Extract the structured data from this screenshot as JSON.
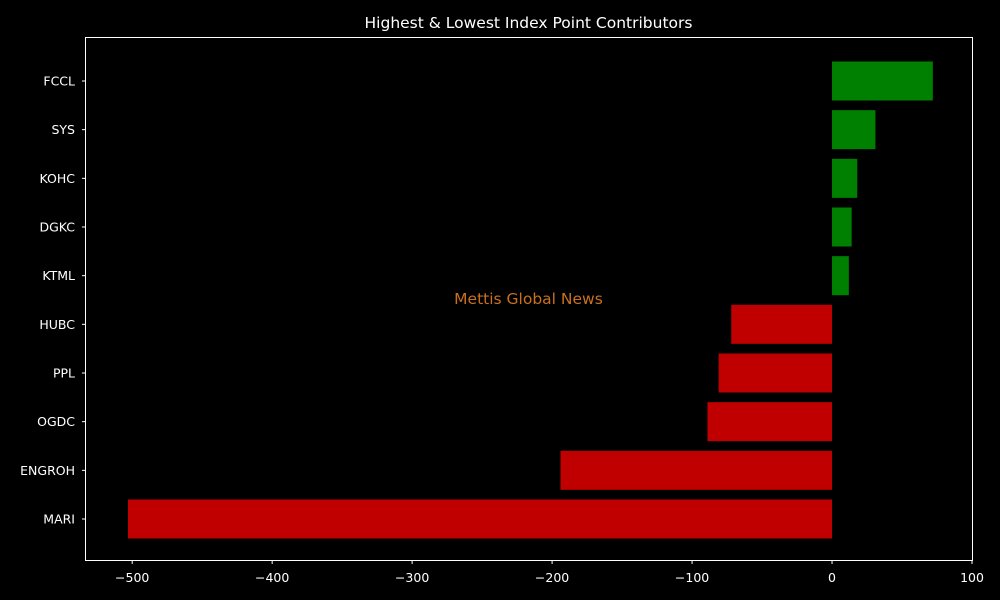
{
  "chart_data": {
    "type": "bar",
    "orientation": "horizontal",
    "title": "Highest & Lowest Index Point Contributors",
    "xlabel": "",
    "ylabel": "",
    "categories": [
      "FCCL",
      "SYS",
      "KOHC",
      "DGKC",
      "KTML",
      "HUBC",
      "PPL",
      "OGDC",
      "ENGROH",
      "MARI"
    ],
    "values": [
      72,
      31,
      18,
      14,
      12,
      -72,
      -81,
      -89,
      -194,
      -503
    ],
    "xlim": [
      -533,
      100
    ],
    "xticks": [
      -500,
      -400,
      -300,
      -200,
      -100,
      0,
      100
    ],
    "xtick_labels": [
      "−500",
      "−400",
      "−300",
      "−200",
      "−100",
      "0",
      "100"
    ],
    "grid": false,
    "colors": {
      "positive": "#008000",
      "negative": "#c00000",
      "background": "#000000",
      "text": "#ffffff",
      "watermark": "#c87020"
    }
  },
  "watermark": {
    "text": "Mettis Global News"
  }
}
